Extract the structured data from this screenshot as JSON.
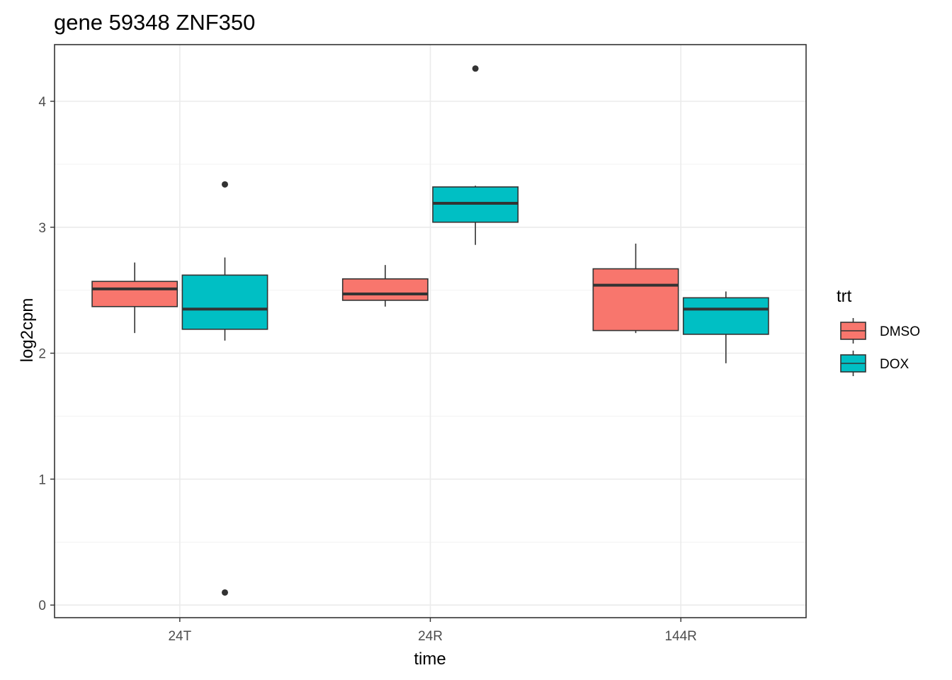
{
  "chart_data": {
    "type": "boxplot",
    "title": "gene 59348 ZNF350",
    "xlabel": "time",
    "ylabel": "log2cpm",
    "categories": [
      "24T",
      "24R",
      "144R"
    ],
    "ylim": [
      -0.1,
      4.45
    ],
    "yticks": [
      0,
      1,
      2,
      3,
      4
    ],
    "grid": true,
    "legend": {
      "title": "trt",
      "position": "right"
    },
    "series": [
      {
        "name": "DMSO",
        "color": "#F8766D",
        "boxes": [
          {
            "category": "24T",
            "min": 2.16,
            "q1": 2.37,
            "median": 2.51,
            "q3": 2.57,
            "max": 2.72,
            "outliers": []
          },
          {
            "category": "24R",
            "min": 2.37,
            "q1": 2.42,
            "median": 2.47,
            "q3": 2.59,
            "max": 2.7,
            "outliers": []
          },
          {
            "category": "144R",
            "min": 2.16,
            "q1": 2.18,
            "median": 2.54,
            "q3": 2.67,
            "max": 2.87,
            "outliers": []
          }
        ]
      },
      {
        "name": "DOX",
        "color": "#00BFC4",
        "boxes": [
          {
            "category": "24T",
            "min": 2.1,
            "q1": 2.19,
            "median": 2.35,
            "q3": 2.62,
            "max": 2.76,
            "outliers": [
              3.34,
              0.1
            ]
          },
          {
            "category": "24R",
            "min": 2.86,
            "q1": 3.04,
            "median": 3.19,
            "q3": 3.32,
            "max": 3.33,
            "outliers": [
              4.26
            ]
          },
          {
            "category": "144R",
            "min": 1.92,
            "q1": 2.15,
            "median": 2.35,
            "q3": 2.44,
            "max": 2.49,
            "outliers": []
          }
        ]
      }
    ]
  }
}
